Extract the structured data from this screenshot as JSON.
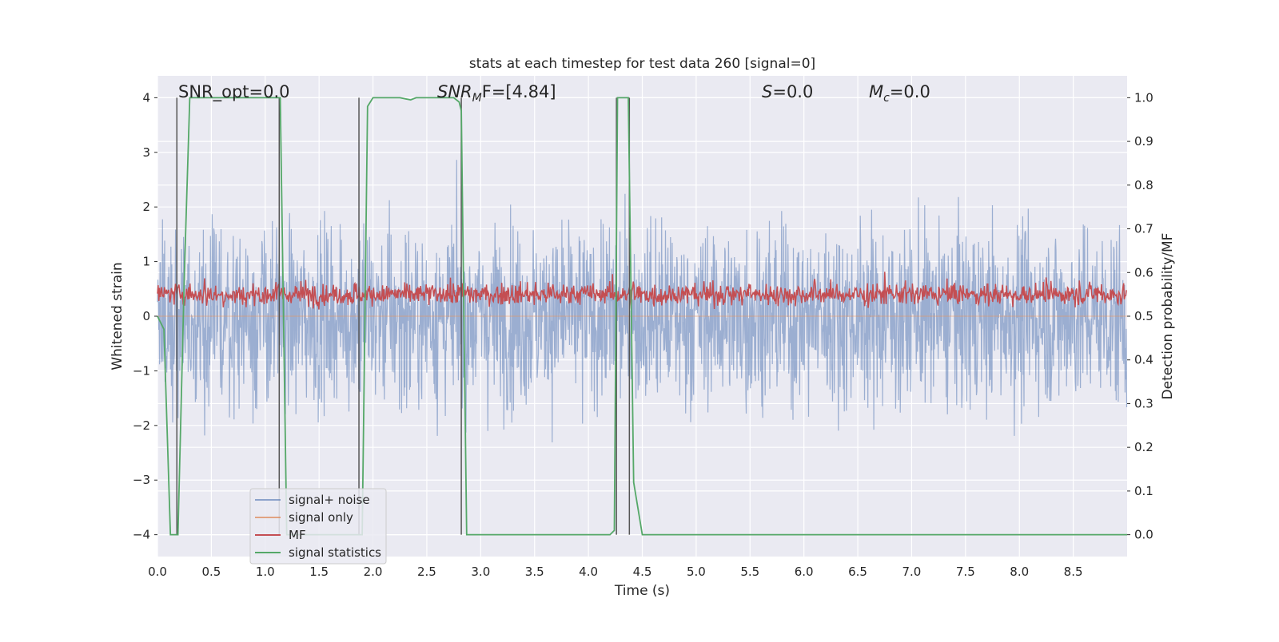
{
  "chart_data": {
    "type": "line",
    "title": "stats at each timestep for test data 260 [signal=0]",
    "xlabel": "Time (s)",
    "ylabel_left": "Whitened strain",
    "ylabel_right": "Detection probability/MF",
    "xlim": [
      0,
      9.0
    ],
    "ylim_left": [
      -4.4,
      4.4
    ],
    "ylim_right": [
      -0.05,
      1.05
    ],
    "xticks": [
      "0.0",
      "0.5",
      "1.0",
      "1.5",
      "2.0",
      "2.5",
      "3.0",
      "3.5",
      "4.0",
      "4.5",
      "5.0",
      "5.5",
      "6.0",
      "6.5",
      "7.0",
      "7.5",
      "8.0",
      "8.5"
    ],
    "xtick_values": [
      0,
      0.5,
      1.0,
      1.5,
      2.0,
      2.5,
      3.0,
      3.5,
      4.0,
      4.5,
      5.0,
      5.5,
      6.0,
      6.5,
      7.0,
      7.5,
      8.0,
      8.5
    ],
    "yticks_left": [
      "−4",
      "−3",
      "−2",
      "−1",
      "0",
      "1",
      "2",
      "3",
      "4"
    ],
    "ytick_values_left": [
      -4,
      -3,
      -2,
      -1,
      0,
      1,
      2,
      3,
      4
    ],
    "yticks_right": [
      "0.0",
      "0.1",
      "0.2",
      "0.3",
      "0.4",
      "0.5",
      "0.6",
      "0.7",
      "0.8",
      "0.9",
      "1.0"
    ],
    "ytick_values_right": [
      0,
      0.1,
      0.2,
      0.3,
      0.4,
      0.5,
      0.6,
      0.7,
      0.8,
      0.9,
      1.0
    ],
    "grid": true,
    "legend_placement": "lower-left",
    "annotations": {
      "snr_opt": "SNR_opt=0.0",
      "snr_mf_base": "SNR",
      "snr_mf_sub": "M",
      "snr_mf_rest": "F=[4.84]",
      "s_label": "S",
      "s_value": "=0.0",
      "mc_base": "M",
      "mc_sub": "c",
      "mc_value": "=0.0"
    },
    "series": [
      {
        "name": "signal+ noise",
        "color": "#4c72b0",
        "axis": "left",
        "kind": "noise",
        "envelope": [
          -2.0,
          2.0
        ],
        "sample_rate_hz": 256,
        "note_range": [
          -3.6,
          3.6
        ]
      },
      {
        "name": "signal only",
        "color": "#dd8452",
        "axis": "left",
        "kind": "flat",
        "value": 0
      },
      {
        "name": "MF",
        "color": "#c44e52",
        "axis": "right",
        "kind": "mf",
        "baseline": 0.55,
        "range": [
          0.5,
          0.62
        ]
      },
      {
        "name": "signal statistics",
        "color": "#55a868",
        "axis": "right",
        "kind": "line",
        "x": [
          0.0,
          0.06,
          0.12,
          0.18,
          0.19,
          0.25,
          0.3,
          1.1,
          1.14,
          1.2,
          1.85,
          1.9,
          1.95,
          2.0,
          2.25,
          2.35,
          2.4,
          2.75,
          2.8,
          2.82,
          2.87,
          2.93,
          4.2,
          4.24,
          4.27,
          4.33,
          4.37,
          4.42,
          4.5,
          9.0
        ],
        "y": [
          0.5,
          0.47,
          0.0,
          0.0,
          0.0,
          0.6,
          1.0,
          1.0,
          1.0,
          0.0,
          0.0,
          0.0,
          0.98,
          1.0,
          1.0,
          0.995,
          1.0,
          1.0,
          0.99,
          0.97,
          0.0,
          0.0,
          0.0,
          0.01,
          1.0,
          1.0,
          1.0,
          0.12,
          0.0,
          0.0
        ]
      }
    ],
    "vlines_x": [
      0.18,
      1.13,
      1.87,
      2.82,
      4.26,
      4.38
    ]
  }
}
